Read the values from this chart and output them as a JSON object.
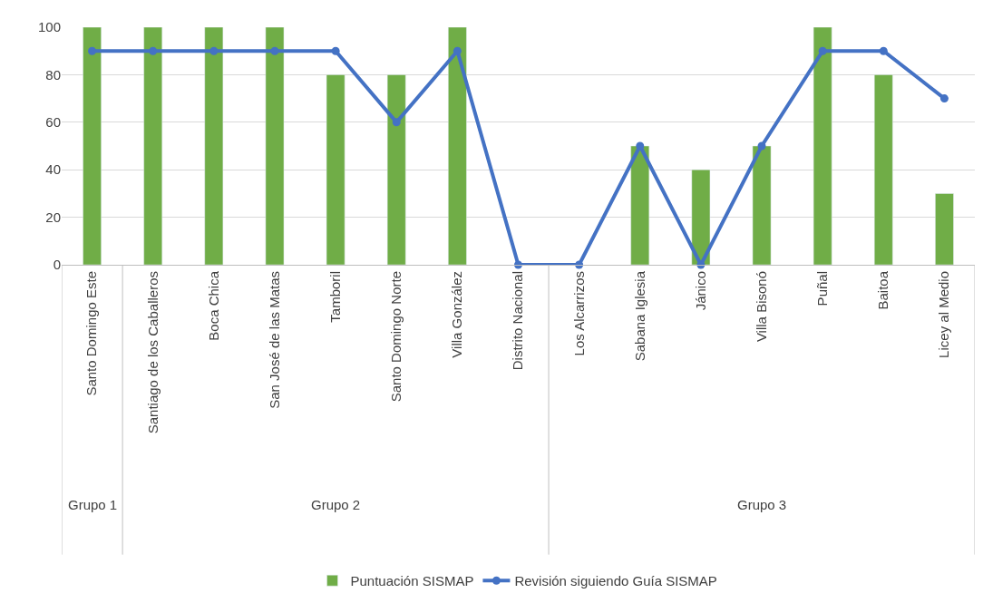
{
  "chart_data": {
    "type": "bar",
    "categories": [
      "Santo Domingo Este",
      "Santiago de los Caballeros",
      "Boca Chica",
      "San José de las Matas",
      "Tamboril",
      "Santo Domingo Norte",
      "Villa González",
      "Distrito Nacional",
      "Los Alcarrizos",
      "Sabana Iglesia",
      "Jánico",
      "Villa Bisonó",
      "Puñal",
      "Baitoa",
      "Licey al Medio"
    ],
    "series": [
      {
        "name": "Puntuación SISMAP",
        "color": "#70ad47",
        "values": [
          100,
          100,
          100,
          100,
          80,
          80,
          100,
          null,
          null,
          50,
          40,
          50,
          100,
          80,
          30
        ]
      },
      {
        "name": "Revisión siguiendo Guía SISMAP",
        "type": "line",
        "color": "#4472c4",
        "marker": "circle",
        "values": [
          90,
          90,
          90,
          90,
          90,
          60,
          90,
          0,
          0,
          50,
          0,
          50,
          90,
          90,
          70
        ]
      }
    ],
    "ylim": [
      0,
      100
    ],
    "yticks": [
      0,
      20,
      40,
      60,
      80,
      100
    ],
    "grid": "y",
    "legend": "bottom",
    "annotations": [
      "Grupo 1",
      "Grupo 2",
      "Grupo 3"
    ]
  }
}
